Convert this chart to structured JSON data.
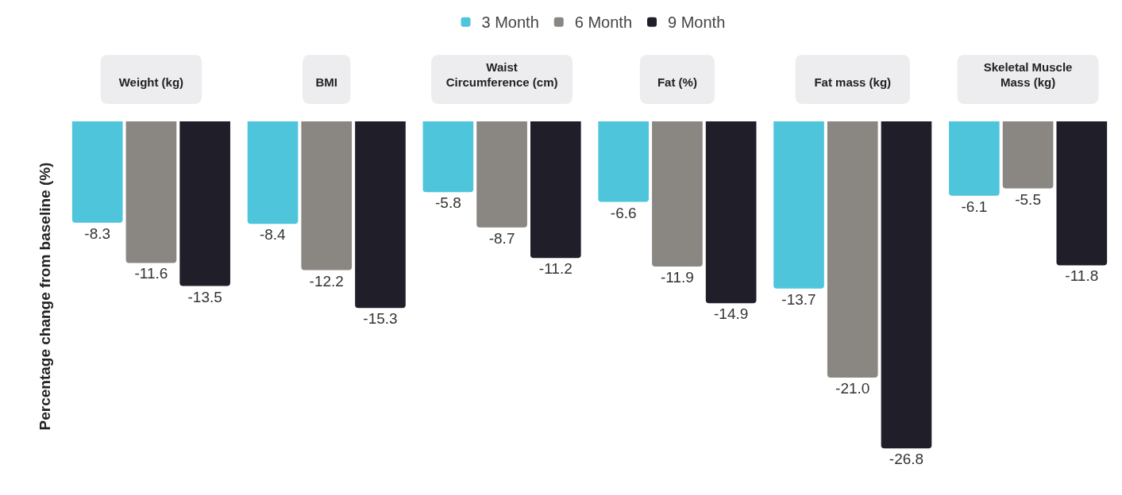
{
  "chart_data": {
    "type": "bar",
    "ylabel": "Percentage change from baseline (%)",
    "categories": [
      "Weight (kg)",
      "BMI",
      "Waist Circumference (cm)",
      "Fat (%)",
      "Fat mass (kg)",
      "Skeletal Muscle Mass (kg)"
    ],
    "series": [
      {
        "name": "3 Month",
        "color": "#4fc5dc",
        "values": [
          -8.3,
          -8.4,
          -5.8,
          -6.6,
          -13.7,
          -6.1
        ],
        "value_labels": [
          "-8.3",
          "-8.4",
          "-5.8",
          "-6.6",
          "-13.7",
          "-6.1"
        ]
      },
      {
        "name": "6 Month",
        "color": "#8a8682",
        "values": [
          -11.6,
          -12.2,
          -8.7,
          -11.9,
          -21.0,
          -5.5
        ],
        "value_labels": [
          "-11.6",
          "-12.2",
          "-8.7",
          "-11.9",
          "-21.0",
          "-5.5"
        ]
      },
      {
        "name": "9 Month",
        "color": "#201e29",
        "values": [
          -13.5,
          -15.3,
          -11.2,
          -14.9,
          -26.8,
          -11.8
        ],
        "value_labels": [
          "-13.5",
          "-15.3",
          "-11.2",
          "-14.9",
          "-26.8",
          "-11.8"
        ]
      }
    ],
    "grid": false,
    "legend": "top"
  }
}
